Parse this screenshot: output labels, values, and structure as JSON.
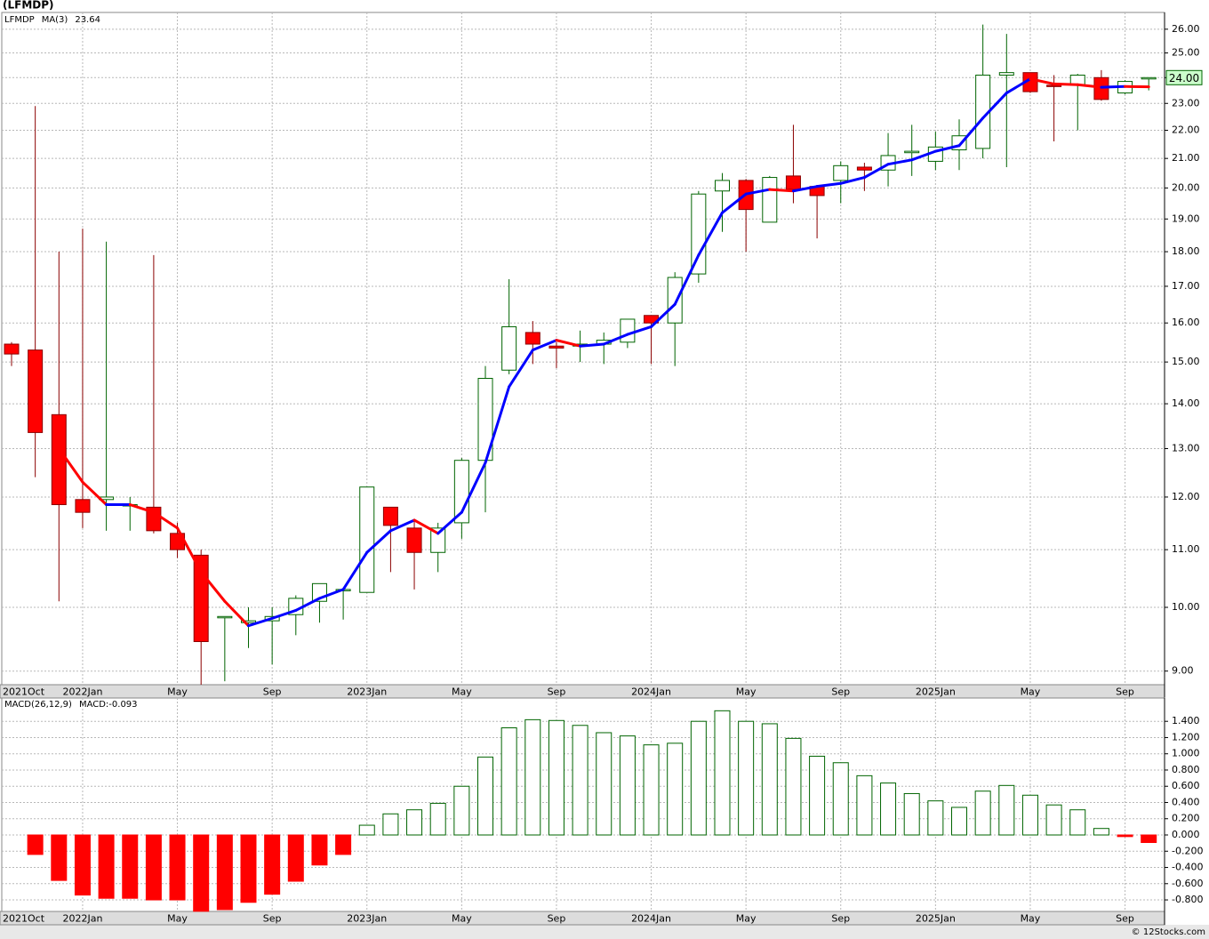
{
  "chart_data": [
    {
      "type": "candlestick",
      "title": "(LFMDP)",
      "symbol": "LFMDP",
      "log": true,
      "grid": true,
      "up_color": "#006400",
      "down_color": "#ff0000",
      "down_edge_color": "#8b0000",
      "categories": [
        "2021Oct",
        null,
        null,
        "2022Jan",
        null,
        null,
        null,
        "May",
        null,
        null,
        null,
        "Sep",
        null,
        null,
        null,
        "2023Jan",
        null,
        null,
        null,
        "May",
        null,
        null,
        null,
        "Sep",
        null,
        null,
        null,
        "2024Jan",
        null,
        null,
        null,
        "May",
        null,
        null,
        null,
        "Sep",
        null,
        null,
        null,
        "2025Jan",
        null,
        null,
        null,
        "May",
        null,
        null,
        null,
        "Sep",
        null
      ],
      "open": [
        15.45,
        15.3,
        13.75,
        11.95,
        11.95,
        11.85,
        11.8,
        11.3,
        10.9,
        9.85,
        9.75,
        9.78,
        9.88,
        10.1,
        10.28,
        10.25,
        11.8,
        11.4,
        10.95,
        11.5,
        12.75,
        14.8,
        15.75,
        15.4,
        15.4,
        15.45,
        15.5,
        16.2,
        16.0,
        17.35,
        19.9,
        20.25,
        18.9,
        20.4,
        20.05,
        20.25,
        20.7,
        20.6,
        21.2,
        20.9,
        21.3,
        21.35,
        24.1,
        24.2,
        23.7,
        23.7,
        24.0,
        23.4,
        23.95
      ],
      "high": [
        15.5,
        22.9,
        18.0,
        18.7,
        18.3,
        12.0,
        17.9,
        11.5,
        11.0,
        9.85,
        10.0,
        10.0,
        10.2,
        10.4,
        10.3,
        12.2,
        11.8,
        11.55,
        11.5,
        12.8,
        14.9,
        17.2,
        16.05,
        15.5,
        15.8,
        15.75,
        16.1,
        16.2,
        17.4,
        19.9,
        20.5,
        20.3,
        20.4,
        22.2,
        20.1,
        20.9,
        20.85,
        21.9,
        22.2,
        21.95,
        22.4,
        26.2,
        25.8,
        24.2,
        24.1,
        24.15,
        24.3,
        23.9,
        24.0
      ],
      "low": [
        14.9,
        12.4,
        10.1,
        11.4,
        11.35,
        11.35,
        11.3,
        10.85,
        8.8,
        8.85,
        9.35,
        9.1,
        9.55,
        9.75,
        9.8,
        10.25,
        10.6,
        10.3,
        10.6,
        11.2,
        11.7,
        14.7,
        14.95,
        14.85,
        15.0,
        14.95,
        15.35,
        14.95,
        14.9,
        17.1,
        18.6,
        18.0,
        18.9,
        19.5,
        18.4,
        19.5,
        19.9,
        20.05,
        20.4,
        20.6,
        20.6,
        21.0,
        20.7,
        23.4,
        21.6,
        22.0,
        23.1,
        23.35,
        23.5
      ],
      "close": [
        15.2,
        13.35,
        11.85,
        11.7,
        12.0,
        11.85,
        11.35,
        11.0,
        9.45,
        9.85,
        9.78,
        9.85,
        10.15,
        10.4,
        10.3,
        12.2,
        11.45,
        10.95,
        11.4,
        12.75,
        14.6,
        15.9,
        15.45,
        15.35,
        15.45,
        15.55,
        16.1,
        16.0,
        17.25,
        19.8,
        20.25,
        19.3,
        20.35,
        19.95,
        19.75,
        20.75,
        20.6,
        21.1,
        21.25,
        21.4,
        21.8,
        24.1,
        24.2,
        23.45,
        23.65,
        24.1,
        23.15,
        23.85,
        24.0
      ],
      "series": [
        {
          "name": "MA(3)",
          "last_label": "23.64",
          "up_color": "#0000ff",
          "down_color": "#ff0000",
          "values": [
            null,
            null,
            13.0,
            12.3,
            11.85,
            11.85,
            11.7,
            11.4,
            10.6,
            10.1,
            9.7,
            9.82,
            9.95,
            10.15,
            10.3,
            10.95,
            11.35,
            11.55,
            11.3,
            11.7,
            12.7,
            14.4,
            15.3,
            15.55,
            15.4,
            15.45,
            15.7,
            15.9,
            16.5,
            17.9,
            19.2,
            19.8,
            19.95,
            19.9,
            20.05,
            20.15,
            20.35,
            20.8,
            20.95,
            21.25,
            21.45,
            22.45,
            23.4,
            23.95,
            23.75,
            23.72,
            23.62,
            23.65,
            23.64
          ]
        }
      ],
      "last_price": {
        "value": 24,
        "label": "24.00"
      },
      "ylim": [
        8.8,
        26.73
      ],
      "yticks": [
        {
          "value": 9,
          "label": "9.00"
        },
        {
          "value": 10,
          "label": "10.00"
        },
        {
          "value": 11,
          "label": "11.00"
        },
        {
          "value": 12,
          "label": "12.00"
        },
        {
          "value": 13,
          "label": "13.00"
        },
        {
          "value": 14,
          "label": "14.00"
        },
        {
          "value": 15,
          "label": "15.00"
        },
        {
          "value": 16,
          "label": "16.00"
        },
        {
          "value": 17,
          "label": "17.00"
        },
        {
          "value": 18,
          "label": "18.00"
        },
        {
          "value": 19,
          "label": "19.00"
        },
        {
          "value": 20,
          "label": "20.00"
        },
        {
          "value": 21,
          "label": "21.00"
        },
        {
          "value": 22,
          "label": "22.00"
        },
        {
          "value": 23,
          "label": "23.00"
        },
        {
          "value": 24,
          "label": "24.00"
        },
        {
          "value": 25,
          "label": "25.00"
        },
        {
          "value": 26,
          "label": "26.00"
        }
      ]
    },
    {
      "type": "bar",
      "title": "MACD(26,12,9)",
      "value_label": "MACD:-0.093",
      "grid": true,
      "up_color": "#006400",
      "down_color": "#ff0000",
      "values": [
        null,
        -0.24,
        -0.56,
        -0.74,
        -0.78,
        -0.78,
        -0.8,
        -0.8,
        -0.94,
        -0.92,
        -0.83,
        -0.73,
        -0.57,
        -0.37,
        -0.24,
        0.12,
        0.26,
        0.31,
        0.39,
        0.6,
        0.96,
        1.32,
        1.42,
        1.41,
        1.35,
        1.26,
        1.22,
        1.11,
        1.13,
        1.4,
        1.53,
        1.4,
        1.37,
        1.19,
        0.97,
        0.89,
        0.73,
        0.64,
        0.51,
        0.42,
        0.34,
        0.54,
        0.61,
        0.49,
        0.37,
        0.31,
        0.08,
        -0.02,
        -0.093
      ],
      "ylim": [
        -0.942,
        1.687
      ],
      "yticks": [
        {
          "value": -0.8,
          "label": "-0.800"
        },
        {
          "value": -0.6,
          "label": "-0.600"
        },
        {
          "value": -0.4,
          "label": "-0.400"
        },
        {
          "value": -0.2,
          "label": "-0.200"
        },
        {
          "value": 0,
          "label": "0.000"
        },
        {
          "value": 0.2,
          "label": "0.200"
        },
        {
          "value": 0.4,
          "label": "0.400"
        },
        {
          "value": 0.6,
          "label": "0.600"
        },
        {
          "value": 0.8,
          "label": "0.800"
        },
        {
          "value": 1.0,
          "label": "1.000"
        },
        {
          "value": 1.2,
          "label": "1.200"
        },
        {
          "value": 1.4,
          "label": "1.400"
        }
      ]
    }
  ],
  "footer": "© 12Stocks.com"
}
